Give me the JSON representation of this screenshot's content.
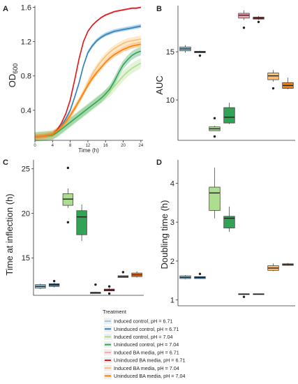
{
  "panels": [
    {
      "letter": "A"
    },
    {
      "letter": "B"
    },
    {
      "letter": "C"
    },
    {
      "letter": "D"
    }
  ],
  "legend": {
    "title": "Treatment",
    "items": [
      {
        "label": "Induced control, pH = 6.71",
        "color": "#9ecae1"
      },
      {
        "label": "Uninduced control, pH = 6.71",
        "color": "#3182bd"
      },
      {
        "label": "Induced control, pH = 7.04",
        "color": "#addd8e"
      },
      {
        "label": "Uninduced control, pH = 7.04",
        "color": "#31a354"
      },
      {
        "label": "Induced BA media, pH = 6.71",
        "color": "#f4a6b0"
      },
      {
        "label": "Uninduced BA media, pH = 6.71",
        "color": "#e31a1c"
      },
      {
        "label": "Induced BA media, pH = 7.04",
        "color": "#fdbf6f"
      },
      {
        "label": "Uninduced BA media, pH = 7.04",
        "color": "#ff7f00"
      }
    ]
  },
  "chart_data": [
    {
      "panel": "A",
      "type": "line",
      "xlabel": "Time (h)",
      "ylabel": "OD",
      "ylabel_sub": "600",
      "x_ticks": [
        "0",
        "4",
        "8",
        "12",
        "16",
        "20",
        "24"
      ],
      "y_ticks": [
        "0.4",
        "0.8",
        "1.2",
        "1.6"
      ],
      "xlim": [
        0,
        24.5
      ],
      "ylim": [
        0.05,
        1.62
      ],
      "x": [
        0,
        2,
        4,
        5,
        6,
        7,
        8,
        9,
        10,
        11,
        12,
        13,
        14,
        15,
        16,
        17,
        18,
        19,
        20,
        21,
        22,
        23,
        24
      ],
      "series": [
        {
          "color": "#9ecae1",
          "values": [
            0.09,
            0.1,
            0.12,
            0.16,
            0.22,
            0.3,
            0.4,
            0.55,
            0.72,
            0.92,
            1.08,
            1.16,
            1.22,
            1.26,
            1.29,
            1.31,
            1.33,
            1.34,
            1.35,
            1.36,
            1.37,
            1.38,
            1.39
          ],
          "band": 0.02
        },
        {
          "color": "#3182bd",
          "values": [
            0.09,
            0.1,
            0.12,
            0.16,
            0.22,
            0.3,
            0.4,
            0.55,
            0.72,
            0.92,
            1.07,
            1.15,
            1.21,
            1.25,
            1.28,
            1.3,
            1.32,
            1.33,
            1.34,
            1.35,
            1.36,
            1.37,
            1.38
          ],
          "band": 0.02
        },
        {
          "color": "#addd8e",
          "values": [
            0.09,
            0.1,
            0.11,
            0.14,
            0.18,
            0.22,
            0.26,
            0.3,
            0.34,
            0.38,
            0.42,
            0.46,
            0.5,
            0.54,
            0.58,
            0.62,
            0.68,
            0.74,
            0.8,
            0.85,
            0.89,
            0.92,
            0.95
          ],
          "band": 0.06
        },
        {
          "color": "#31a354",
          "values": [
            0.09,
            0.1,
            0.11,
            0.14,
            0.18,
            0.22,
            0.26,
            0.3,
            0.34,
            0.38,
            0.42,
            0.46,
            0.5,
            0.54,
            0.59,
            0.65,
            0.74,
            0.84,
            0.93,
            0.99,
            1.04,
            1.07,
            1.09
          ],
          "band": 0.05
        },
        {
          "color": "#f4a6b0",
          "values": [
            0.09,
            0.1,
            0.12,
            0.17,
            0.25,
            0.36,
            0.52,
            0.75,
            1.0,
            1.2,
            1.32,
            1.39,
            1.44,
            1.48,
            1.51,
            1.53,
            1.55,
            1.56,
            1.57,
            1.58,
            1.59,
            1.59,
            1.6
          ],
          "band": 0.01
        },
        {
          "color": "#e31a1c",
          "values": [
            0.09,
            0.1,
            0.12,
            0.17,
            0.25,
            0.36,
            0.52,
            0.75,
            1.0,
            1.2,
            1.32,
            1.39,
            1.44,
            1.48,
            1.51,
            1.53,
            1.55,
            1.56,
            1.57,
            1.58,
            1.59,
            1.59,
            1.6
          ],
          "band": 0.01
        },
        {
          "color": "#fdbf6f",
          "values": [
            0.09,
            0.1,
            0.12,
            0.16,
            0.21,
            0.27,
            0.34,
            0.42,
            0.51,
            0.61,
            0.72,
            0.82,
            0.9,
            0.97,
            1.03,
            1.08,
            1.12,
            1.15,
            1.18,
            1.2,
            1.21,
            1.22,
            1.23
          ],
          "band": 0.04
        },
        {
          "color": "#ff7f00",
          "values": [
            0.09,
            0.1,
            0.12,
            0.16,
            0.21,
            0.27,
            0.34,
            0.42,
            0.51,
            0.6,
            0.69,
            0.77,
            0.84,
            0.9,
            0.96,
            1.01,
            1.05,
            1.08,
            1.11,
            1.13,
            1.15,
            1.16,
            1.17
          ],
          "band": 0.03
        }
      ]
    },
    {
      "panel": "B",
      "type": "box",
      "ylabel": "AUC",
      "y_ticks": [
        "10",
        "15"
      ],
      "ylim": [
        5.8,
        19.8
      ],
      "boxes": [
        {
          "color": "#9ecae1",
          "q1": 15.1,
          "med": 15.3,
          "q3": 15.5,
          "lo": 14.9,
          "hi": 15.7,
          "out": []
        },
        {
          "color": "#3182bd",
          "q1": 14.9,
          "med": 15.0,
          "q3": 15.05,
          "lo": 14.9,
          "hi": 15.1,
          "out": [
            14.6
          ]
        },
        {
          "color": "#addd8e",
          "q1": 6.8,
          "med": 7.0,
          "q3": 7.2,
          "lo": 6.8,
          "hi": 7.3,
          "out": [
            8.1,
            6.2
          ]
        },
        {
          "color": "#31a354",
          "q1": 7.6,
          "med": 8.2,
          "q3": 9.2,
          "lo": 7.5,
          "hi": 9.7,
          "out": []
        },
        {
          "color": "#f4a6b0",
          "q1": 18.5,
          "med": 18.8,
          "q3": 19.0,
          "lo": 18.3,
          "hi": 19.3,
          "out": [
            17.5
          ]
        },
        {
          "color": "#e31a1c",
          "q1": 18.4,
          "med": 18.5,
          "q3": 18.6,
          "lo": 18.3,
          "hi": 18.7,
          "out": [
            18.1
          ]
        },
        {
          "color": "#fdbf6f",
          "q1": 12.1,
          "med": 12.5,
          "q3": 12.8,
          "lo": 11.9,
          "hi": 13.1,
          "out": [
            11.2
          ]
        },
        {
          "color": "#ff7f00",
          "q1": 11.2,
          "med": 11.5,
          "q3": 11.8,
          "lo": 11.1,
          "hi": 12.3,
          "out": []
        }
      ]
    },
    {
      "panel": "C",
      "type": "box",
      "ylabel": "Time at inflection (h)",
      "y_ticks": [
        "15",
        "20",
        "25"
      ],
      "ylim": [
        10.8,
        26.0
      ],
      "boxes": [
        {
          "color": "#9ecae1",
          "q1": 11.6,
          "med": 11.8,
          "q3": 12.0,
          "lo": 11.5,
          "hi": 12.1,
          "out": []
        },
        {
          "color": "#3182bd",
          "q1": 11.8,
          "med": 12.0,
          "q3": 12.1,
          "lo": 11.7,
          "hi": 12.2,
          "out": [
            12.4
          ]
        },
        {
          "color": "#addd8e",
          "q1": 20.9,
          "med": 21.6,
          "q3": 22.2,
          "lo": 20.6,
          "hi": 22.8,
          "out": [
            25.1,
            19.0
          ]
        },
        {
          "color": "#31a354",
          "q1": 17.6,
          "med": 19.6,
          "q3": 20.3,
          "lo": 16.9,
          "hi": 21.0,
          "out": []
        },
        {
          "color": "#f4a6b0",
          "q1": 11.0,
          "med": 11.1,
          "q3": 11.15,
          "lo": 11.0,
          "hi": 11.2,
          "out": [
            12.0
          ]
        },
        {
          "color": "#e31a1c",
          "q1": 11.3,
          "med": 11.4,
          "q3": 11.5,
          "lo": 11.3,
          "hi": 11.6,
          "out": [
            11.0,
            11.8
          ]
        },
        {
          "color": "#fdbf6f",
          "q1": 12.8,
          "med": 12.9,
          "q3": 13.0,
          "lo": 12.8,
          "hi": 13.0,
          "out": [
            13.4
          ]
        },
        {
          "color": "#ff7f00",
          "q1": 12.9,
          "med": 13.1,
          "q3": 13.3,
          "lo": 12.8,
          "hi": 13.5,
          "out": []
        }
      ]
    },
    {
      "panel": "D",
      "type": "box",
      "ylabel": "Doubling time (h)",
      "y_ticks": [
        "1",
        "2",
        "3",
        "4"
      ],
      "ylim": [
        0.85,
        4.6
      ],
      "boxes": [
        {
          "color": "#9ecae1",
          "q1": 1.55,
          "med": 1.58,
          "q3": 1.62,
          "lo": 1.53,
          "hi": 1.64,
          "out": []
        },
        {
          "color": "#3182bd",
          "q1": 1.55,
          "med": 1.58,
          "q3": 1.6,
          "lo": 1.54,
          "hi": 1.6,
          "out": [
            1.67
          ]
        },
        {
          "color": "#addd8e",
          "q1": 3.3,
          "med": 3.75,
          "q3": 3.9,
          "lo": 3.1,
          "hi": 4.4,
          "out": []
        },
        {
          "color": "#31a354",
          "q1": 2.85,
          "med": 3.1,
          "q3": 3.15,
          "lo": 2.75,
          "hi": 3.4,
          "out": []
        },
        {
          "color": "#f4a6b0",
          "q1": 1.14,
          "med": 1.15,
          "q3": 1.16,
          "lo": 1.13,
          "hi": 1.16,
          "out": [
            1.08
          ]
        },
        {
          "color": "#e31a1c",
          "q1": 1.14,
          "med": 1.15,
          "q3": 1.16,
          "lo": 1.14,
          "hi": 1.16,
          "out": []
        },
        {
          "color": "#fdbf6f",
          "q1": 1.76,
          "med": 1.82,
          "q3": 1.88,
          "lo": 1.74,
          "hi": 1.94,
          "out": []
        },
        {
          "color": "#ff7f00",
          "q1": 1.89,
          "med": 1.91,
          "q3": 1.93,
          "lo": 1.88,
          "hi": 1.95,
          "out": []
        }
      ]
    }
  ]
}
